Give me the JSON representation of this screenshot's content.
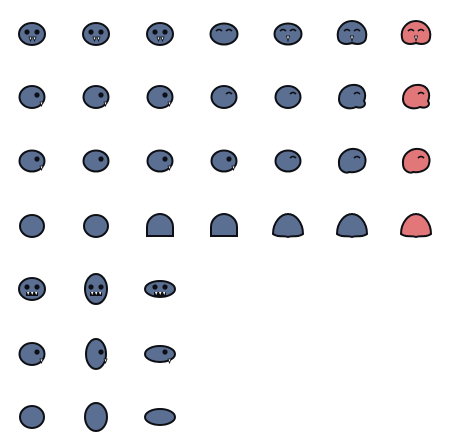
{
  "sheet": {
    "colors": {
      "body": "#5a6f91",
      "body_alt": "#e17778",
      "outline": "#0d0f14",
      "eye": "#0d0f14",
      "highlight": "#ffffff",
      "background": "#ffffff"
    },
    "rows": [
      {
        "name": "front",
        "frames": [
          {
            "shape": "front",
            "eyes": "open",
            "mouth": "two-fang",
            "color": "body"
          },
          {
            "shape": "front",
            "eyes": "open",
            "mouth": "two-fang",
            "color": "body"
          },
          {
            "shape": "front",
            "eyes": "open",
            "mouth": "two-fang",
            "color": "body"
          },
          {
            "shape": "front-wide",
            "eyes": "closed",
            "mouth": "none",
            "color": "body"
          },
          {
            "shape": "front-wide",
            "eyes": "closed",
            "mouth": "one-fang",
            "color": "body"
          },
          {
            "shape": "front-blob",
            "eyes": "closed",
            "mouth": "one-fang",
            "color": "body"
          },
          {
            "shape": "front-blob",
            "eyes": "closed",
            "mouth": "one-fang",
            "color": "body_alt"
          }
        ]
      },
      {
        "name": "side",
        "frames": [
          {
            "shape": "side",
            "eyes": "open",
            "mouth": "fang",
            "color": "body"
          },
          {
            "shape": "side",
            "eyes": "open",
            "mouth": "fang",
            "color": "body"
          },
          {
            "shape": "side",
            "eyes": "open",
            "mouth": "fang",
            "color": "body"
          },
          {
            "shape": "side",
            "eyes": "closed",
            "mouth": "none",
            "color": "body"
          },
          {
            "shape": "side",
            "eyes": "closed",
            "mouth": "none",
            "color": "body"
          },
          {
            "shape": "side-blob",
            "eyes": "closed",
            "mouth": "none",
            "color": "body"
          },
          {
            "shape": "side-blob",
            "eyes": "closed",
            "mouth": "none",
            "color": "body_alt"
          }
        ]
      },
      {
        "name": "three-quarter",
        "frames": [
          {
            "shape": "three-quarter",
            "eyes": "open",
            "mouth": "fang",
            "color": "body"
          },
          {
            "shape": "three-quarter",
            "eyes": "open",
            "mouth": "none",
            "color": "body"
          },
          {
            "shape": "three-quarter",
            "eyes": "open",
            "mouth": "fang",
            "color": "body"
          },
          {
            "shape": "three-quarter",
            "eyes": "open",
            "mouth": "fang",
            "color": "body"
          },
          {
            "shape": "three-quarter",
            "eyes": "closed",
            "mouth": "none",
            "color": "body"
          },
          {
            "shape": "three-quarter-blob",
            "eyes": "closed",
            "mouth": "none",
            "color": "body"
          },
          {
            "shape": "three-quarter-blob",
            "eyes": "closed",
            "mouth": "none",
            "color": "body_alt"
          }
        ]
      },
      {
        "name": "back",
        "frames": [
          {
            "shape": "back",
            "eyes": "none",
            "mouth": "none",
            "color": "body"
          },
          {
            "shape": "back",
            "eyes": "none",
            "mouth": "none",
            "color": "body"
          },
          {
            "shape": "back-flat",
            "eyes": "none",
            "mouth": "none",
            "color": "body"
          },
          {
            "shape": "back-flat",
            "eyes": "none",
            "mouth": "none",
            "color": "body"
          },
          {
            "shape": "back-blob",
            "eyes": "none",
            "mouth": "none",
            "color": "body"
          },
          {
            "shape": "back-blob",
            "eyes": "none",
            "mouth": "none",
            "color": "body"
          },
          {
            "shape": "back-blob",
            "eyes": "none",
            "mouth": "none",
            "color": "body_alt"
          }
        ]
      },
      {
        "name": "front-squash",
        "frames": [
          {
            "shape": "front-squash",
            "eyes": "open",
            "mouth": "teeth",
            "color": "body"
          },
          {
            "shape": "front-stretch",
            "eyes": "open",
            "mouth": "teeth",
            "color": "body"
          },
          {
            "shape": "front-flat",
            "eyes": "open",
            "mouth": "teeth",
            "color": "body"
          }
        ]
      },
      {
        "name": "side-squash",
        "frames": [
          {
            "shape": "side",
            "eyes": "open",
            "mouth": "fang",
            "color": "body"
          },
          {
            "shape": "side-stretch",
            "eyes": "open",
            "mouth": "fang",
            "color": "body"
          },
          {
            "shape": "side-flat",
            "eyes": "open",
            "mouth": "fang",
            "color": "body"
          }
        ]
      },
      {
        "name": "back-squash",
        "frames": [
          {
            "shape": "back",
            "eyes": "none",
            "mouth": "none",
            "color": "body"
          },
          {
            "shape": "back-stretch",
            "eyes": "none",
            "mouth": "none",
            "color": "body"
          },
          {
            "shape": "back-flat-wide",
            "eyes": "none",
            "mouth": "none",
            "color": "body"
          }
        ]
      }
    ]
  }
}
